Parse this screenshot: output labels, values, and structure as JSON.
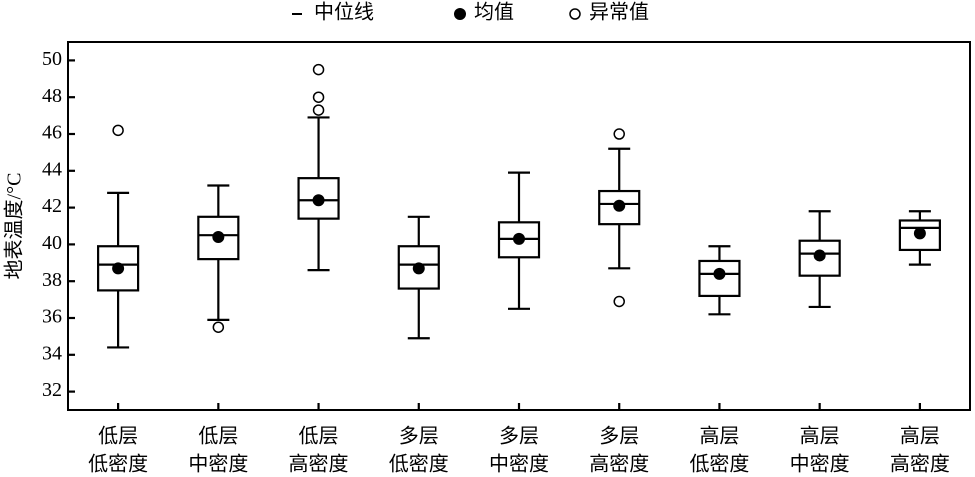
{
  "chart_data": {
    "type": "box",
    "ylabel": "地表温度/°C",
    "categories": [
      [
        "低层",
        "低密度"
      ],
      [
        "低层",
        "中密度"
      ],
      [
        "低层",
        "高密度"
      ],
      [
        "多层",
        "低密度"
      ],
      [
        "多层",
        "中密度"
      ],
      [
        "多层",
        "高密度"
      ],
      [
        "高层",
        "低密度"
      ],
      [
        "高层",
        "中密度"
      ],
      [
        "高层",
        "高密度"
      ]
    ],
    "whisker_low": [
      34.4,
      35.9,
      38.6,
      34.9,
      36.5,
      38.7,
      36.2,
      36.6,
      38.9
    ],
    "q1": [
      37.5,
      39.2,
      41.4,
      37.6,
      39.3,
      41.1,
      37.2,
      38.3,
      39.7
    ],
    "median": [
      38.9,
      40.5,
      42.4,
      38.9,
      40.3,
      42.2,
      38.4,
      39.5,
      40.9
    ],
    "q3": [
      39.9,
      41.5,
      43.6,
      39.9,
      41.2,
      42.9,
      39.1,
      40.2,
      41.3
    ],
    "whisker_high": [
      42.8,
      43.2,
      46.9,
      41.5,
      43.9,
      45.2,
      39.9,
      41.8,
      41.8
    ],
    "mean": [
      38.7,
      40.4,
      42.4,
      38.7,
      40.3,
      42.1,
      38.4,
      39.4,
      40.6
    ],
    "outliers": [
      [
        46.2
      ],
      [
        35.5
      ],
      [
        49.5,
        48.0,
        47.3
      ],
      [],
      [],
      [
        46.0,
        36.9
      ],
      [],
      [],
      []
    ],
    "legend": {
      "median": "中位线",
      "mean": "均值",
      "outlier": "异常值"
    },
    "color": "#000000",
    "ylim": [
      31,
      51
    ],
    "yticks": [
      32,
      34,
      36,
      38,
      40,
      42,
      44,
      46,
      48,
      50
    ]
  }
}
